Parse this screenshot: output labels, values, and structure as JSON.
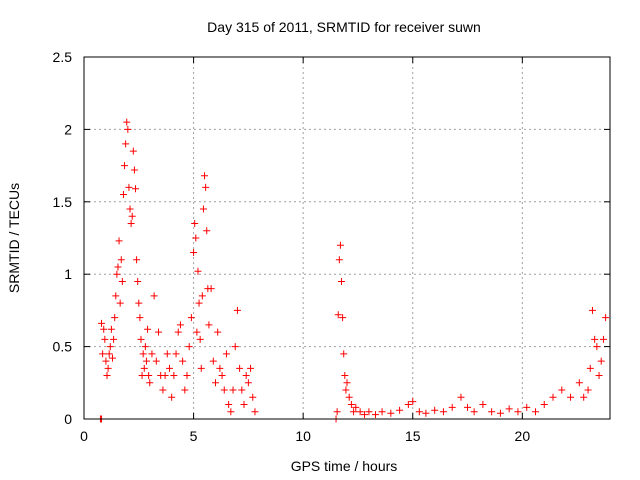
{
  "chart_data": {
    "type": "scatter",
    "title": "Day 315 of 2011, SRMTID for receiver suwn",
    "xlabel": "GPS time / hours",
    "ylabel": "SRMTID / TECUs",
    "xlim": [
      0,
      24
    ],
    "ylim": [
      0,
      2.5
    ],
    "xticks": [
      0,
      5,
      10,
      15,
      20
    ],
    "xtick_labels": [
      "0",
      "5",
      "10",
      "15",
      "20"
    ],
    "yticks": [
      0,
      0.5,
      1,
      1.5,
      2,
      2.5
    ],
    "ytick_labels": [
      "0",
      "0.5",
      "1",
      "1.5",
      "2",
      "2.5"
    ],
    "grid": true,
    "marker": "+",
    "color": "#ff0000",
    "series": [
      {
        "name": "SRMTID",
        "points": [
          [
            0.75,
            0.0
          ],
          [
            0.8,
            0.0
          ],
          [
            0.8,
            0.66
          ],
          [
            0.85,
            0.45
          ],
          [
            0.9,
            0.62
          ],
          [
            0.95,
            0.55
          ],
          [
            1.0,
            0.4
          ],
          [
            1.05,
            0.3
          ],
          [
            1.1,
            0.35
          ],
          [
            1.15,
            0.45
          ],
          [
            1.2,
            0.5
          ],
          [
            1.25,
            0.62
          ],
          [
            1.3,
            0.42
          ],
          [
            1.35,
            0.55
          ],
          [
            1.4,
            0.7
          ],
          [
            1.45,
            0.85
          ],
          [
            1.5,
            1.0
          ],
          [
            1.55,
            1.05
          ],
          [
            1.6,
            1.23
          ],
          [
            1.65,
            0.8
          ],
          [
            1.7,
            1.1
          ],
          [
            1.75,
            0.95
          ],
          [
            1.8,
            1.55
          ],
          [
            1.85,
            1.75
          ],
          [
            1.9,
            1.9
          ],
          [
            1.95,
            2.05
          ],
          [
            2.0,
            2.0
          ],
          [
            2.05,
            1.6
          ],
          [
            2.1,
            1.45
          ],
          [
            2.15,
            1.35
          ],
          [
            2.2,
            1.4
          ],
          [
            2.25,
            1.85
          ],
          [
            2.3,
            1.72
          ],
          [
            2.35,
            1.59
          ],
          [
            2.4,
            1.1
          ],
          [
            2.45,
            0.95
          ],
          [
            2.5,
            0.8
          ],
          [
            2.55,
            0.7
          ],
          [
            2.6,
            0.55
          ],
          [
            2.65,
            0.3
          ],
          [
            2.7,
            0.45
          ],
          [
            2.75,
            0.35
          ],
          [
            2.8,
            0.5
          ],
          [
            2.85,
            0.4
          ],
          [
            2.9,
            0.62
          ],
          [
            2.95,
            0.3
          ],
          [
            3.0,
            0.25
          ],
          [
            3.1,
            0.45
          ],
          [
            3.2,
            0.85
          ],
          [
            3.3,
            0.4
          ],
          [
            3.4,
            0.6
          ],
          [
            3.5,
            0.3
          ],
          [
            3.6,
            0.2
          ],
          [
            3.7,
            0.3
          ],
          [
            3.8,
            0.45
          ],
          [
            3.9,
            0.35
          ],
          [
            4.0,
            0.15
          ],
          [
            4.1,
            0.3
          ],
          [
            4.2,
            0.45
          ],
          [
            4.3,
            0.6
          ],
          [
            4.4,
            0.65
          ],
          [
            4.5,
            0.4
          ],
          [
            4.6,
            0.2
          ],
          [
            4.7,
            0.3
          ],
          [
            4.8,
            0.5
          ],
          [
            4.9,
            0.7
          ],
          [
            5.0,
            1.15
          ],
          [
            5.05,
            1.35
          ],
          [
            5.1,
            1.25
          ],
          [
            5.15,
            0.6
          ],
          [
            5.2,
            1.02
          ],
          [
            5.25,
            0.8
          ],
          [
            5.3,
            0.55
          ],
          [
            5.35,
            0.35
          ],
          [
            5.4,
            0.85
          ],
          [
            5.45,
            1.45
          ],
          [
            5.5,
            1.68
          ],
          [
            5.55,
            1.6
          ],
          [
            5.6,
            1.3
          ],
          [
            5.65,
            0.9
          ],
          [
            5.7,
            0.65
          ],
          [
            5.8,
            0.9
          ],
          [
            5.9,
            0.4
          ],
          [
            6.0,
            0.25
          ],
          [
            6.1,
            0.6
          ],
          [
            6.2,
            0.35
          ],
          [
            6.3,
            0.3
          ],
          [
            6.4,
            0.2
          ],
          [
            6.5,
            0.45
          ],
          [
            6.6,
            0.1
          ],
          [
            6.7,
            0.05
          ],
          [
            6.8,
            0.2
          ],
          [
            6.9,
            0.5
          ],
          [
            7.0,
            0.75
          ],
          [
            7.1,
            0.35
          ],
          [
            7.2,
            0.2
          ],
          [
            7.3,
            0.1
          ],
          [
            7.4,
            0.3
          ],
          [
            7.5,
            0.25
          ],
          [
            7.6,
            0.35
          ],
          [
            7.7,
            0.15
          ],
          [
            7.8,
            0.05
          ],
          [
            11.5,
            0.0
          ],
          [
            11.55,
            0.05
          ],
          [
            11.6,
            0.72
          ],
          [
            11.65,
            1.1
          ],
          [
            11.7,
            1.2
          ],
          [
            11.75,
            0.95
          ],
          [
            11.8,
            0.7
          ],
          [
            11.85,
            0.45
          ],
          [
            11.9,
            0.3
          ],
          [
            11.95,
            0.2
          ],
          [
            12.0,
            0.25
          ],
          [
            12.1,
            0.15
          ],
          [
            12.2,
            0.1
          ],
          [
            12.3,
            0.05
          ],
          [
            12.4,
            0.08
          ],
          [
            12.6,
            0.05
          ],
          [
            12.8,
            0.03
          ],
          [
            13.0,
            0.05
          ],
          [
            13.3,
            0.03
          ],
          [
            13.6,
            0.05
          ],
          [
            14.0,
            0.04
          ],
          [
            14.4,
            0.06
          ],
          [
            14.8,
            0.1
          ],
          [
            15.0,
            0.12
          ],
          [
            15.3,
            0.05
          ],
          [
            15.6,
            0.04
          ],
          [
            16.0,
            0.06
          ],
          [
            16.4,
            0.05
          ],
          [
            16.8,
            0.08
          ],
          [
            17.2,
            0.15
          ],
          [
            17.5,
            0.08
          ],
          [
            17.8,
            0.05
          ],
          [
            18.2,
            0.1
          ],
          [
            18.6,
            0.05
          ],
          [
            19.0,
            0.04
          ],
          [
            19.4,
            0.07
          ],
          [
            19.8,
            0.05
          ],
          [
            20.2,
            0.08
          ],
          [
            20.6,
            0.05
          ],
          [
            21.0,
            0.1
          ],
          [
            21.4,
            0.15
          ],
          [
            21.8,
            0.2
          ],
          [
            22.2,
            0.15
          ],
          [
            22.6,
            0.25
          ],
          [
            22.8,
            0.15
          ],
          [
            23.0,
            0.2
          ],
          [
            23.1,
            0.35
          ],
          [
            23.2,
            0.75
          ],
          [
            23.3,
            0.55
          ],
          [
            23.4,
            0.5
          ],
          [
            23.5,
            0.3
          ],
          [
            23.6,
            0.4
          ],
          [
            23.7,
            0.55
          ],
          [
            23.8,
            0.7
          ]
        ]
      }
    ]
  }
}
